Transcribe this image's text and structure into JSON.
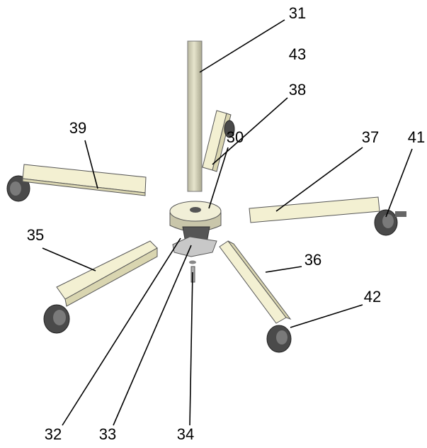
{
  "labels": [
    "31",
    "43",
    "38",
    "39",
    "30",
    "37",
    "41",
    "35",
    "36",
    "42",
    "32",
    "33",
    "34"
  ]
}
